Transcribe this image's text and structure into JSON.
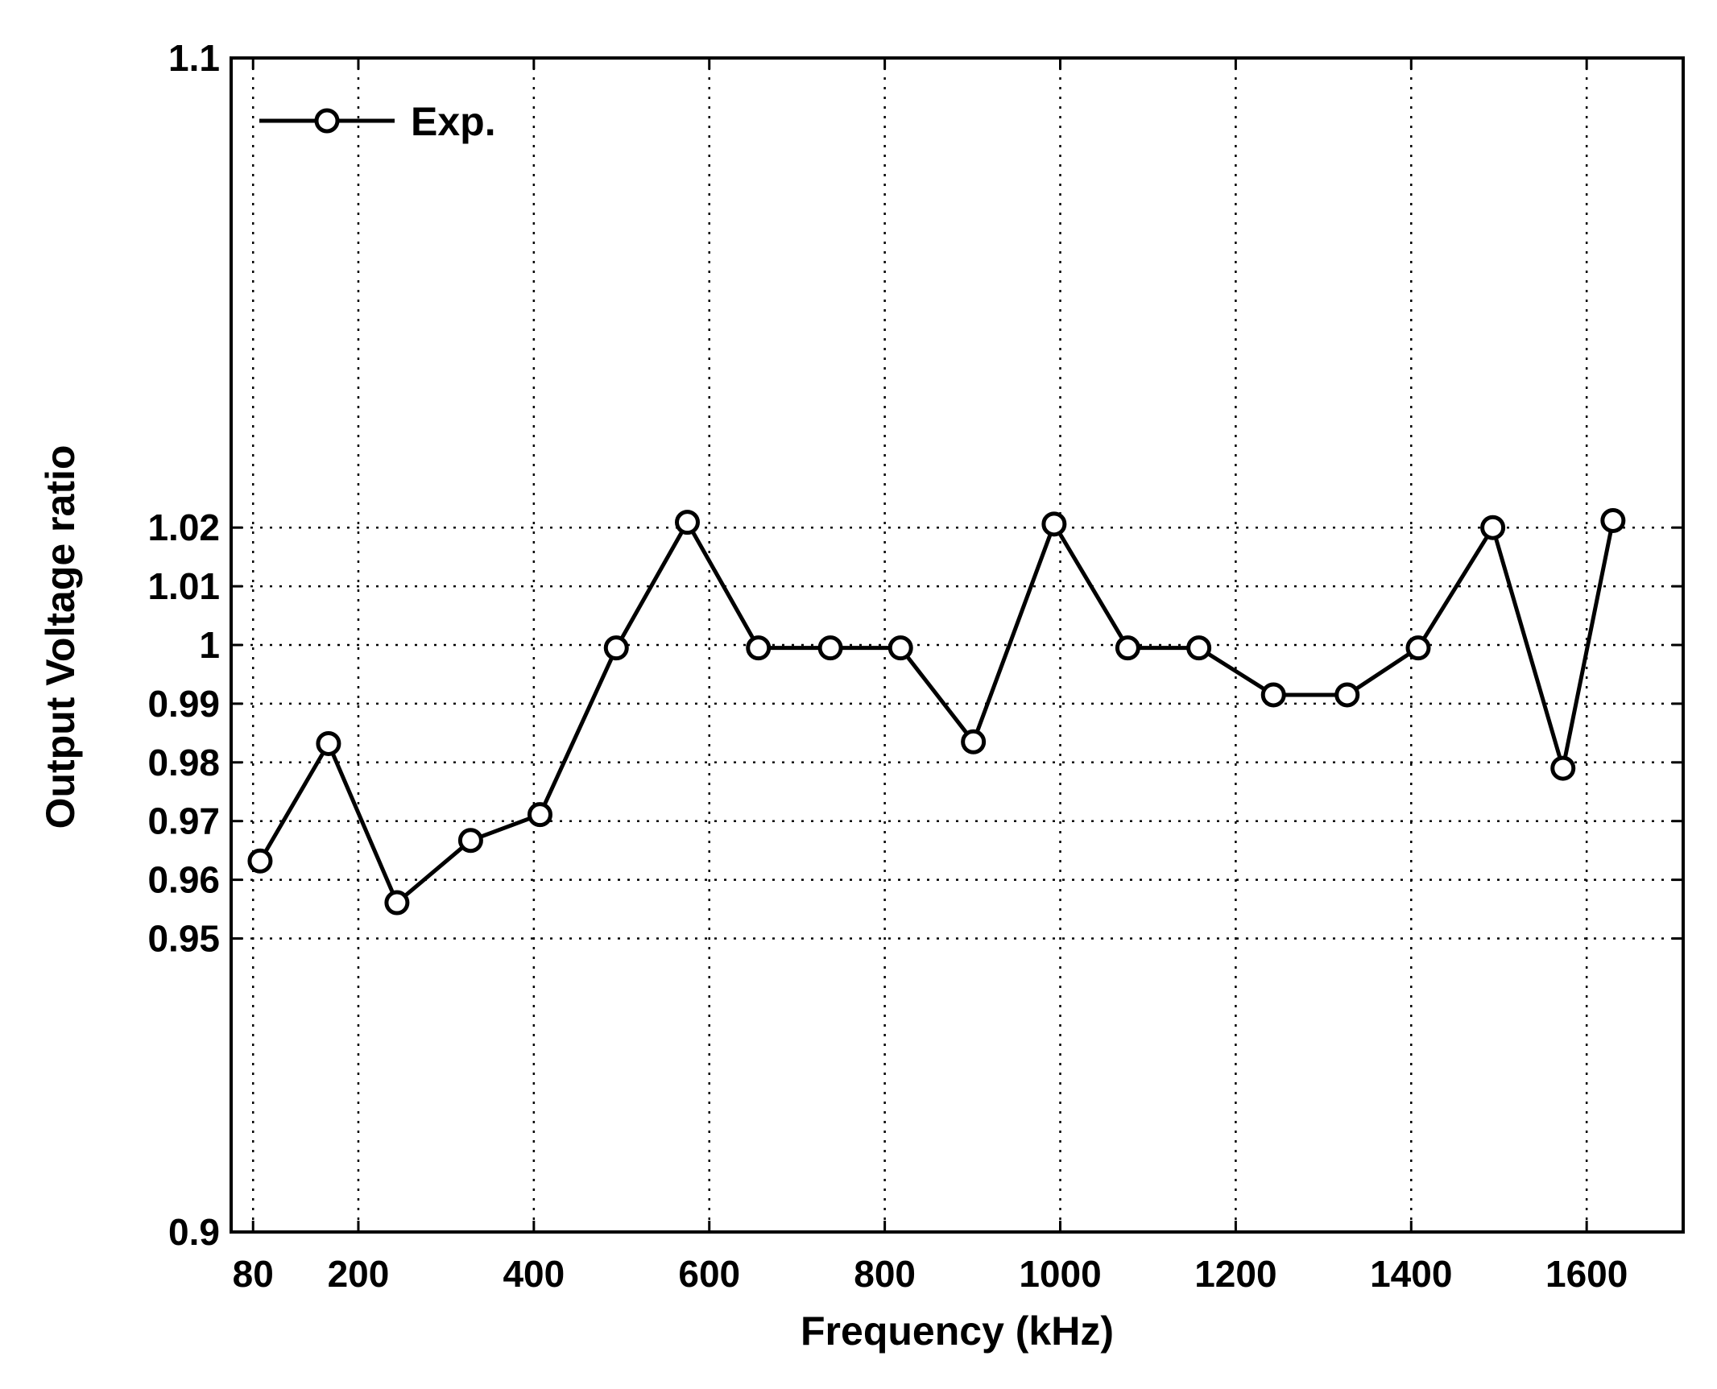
{
  "chart_data": {
    "type": "line",
    "title": "",
    "xlabel": "Frequency (kHz)",
    "ylabel": "Output Voltage ratio",
    "xlim": [
      55,
      1710
    ],
    "ylim": [
      0.9,
      1.1
    ],
    "xticks": [
      80,
      200,
      400,
      600,
      800,
      1000,
      1200,
      1400,
      1600
    ],
    "xtick_labels": [
      "80",
      "200",
      "400",
      "600",
      "800",
      "1000",
      "1200",
      "1400",
      "1600"
    ],
    "yticks": [
      0.9,
      0.95,
      0.96,
      0.97,
      0.98,
      0.99,
      1.0,
      1.01,
      1.02,
      1.1
    ],
    "ytick_labels": [
      "0.9",
      "0.95",
      "0.96",
      "0.97",
      "0.98",
      "0.99",
      "1",
      "1.01",
      "1.02",
      "1.1"
    ],
    "grid": true,
    "legend": {
      "placement": "top-left",
      "entries": [
        "Exp."
      ]
    },
    "series": [
      {
        "name": "Exp.",
        "color": "#000000",
        "marker": "open-circle",
        "x": [
          88,
          166,
          244,
          328,
          407,
          494,
          575,
          656,
          738,
          818,
          901,
          993,
          1077,
          1158,
          1243,
          1327,
          1408,
          1493,
          1573,
          1630
        ],
        "y": [
          0.9632,
          0.9832,
          0.9561,
          0.9667,
          0.9711,
          0.9995,
          1.0209,
          0.9995,
          0.9995,
          0.9995,
          0.9835,
          1.0206,
          0.9995,
          0.9995,
          0.9915,
          0.9915,
          0.9995,
          1.02,
          0.979,
          1.0212
        ]
      }
    ]
  }
}
